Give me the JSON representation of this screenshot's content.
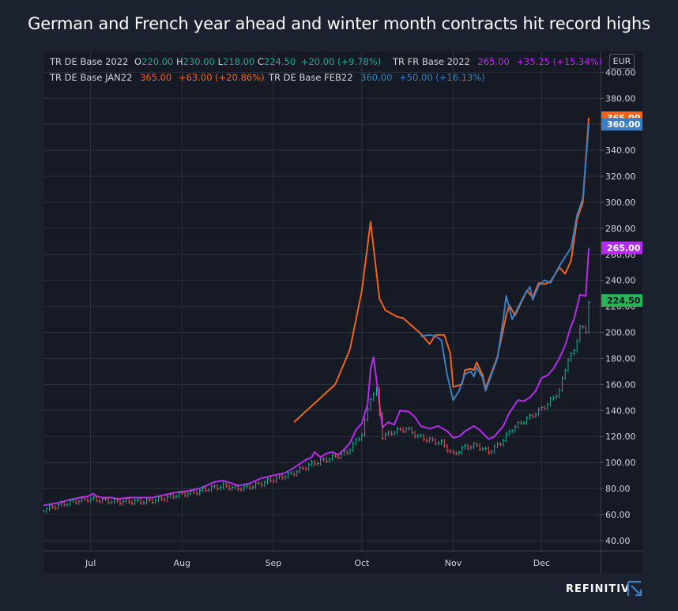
{
  "title": "German and French year ahead and winter month contracts hit record highs",
  "brand": "REFINITIV",
  "currency": "EUR",
  "legend": {
    "de2022": {
      "name": "TR DE Base 2022",
      "o_label": "O",
      "o": "220.00",
      "h_label": "H",
      "h": "230.00",
      "l_label": "L",
      "l": "218.00",
      "c_label": "C",
      "c": "224.50",
      "change": "+20.00 (+9.78%)"
    },
    "fr2022": {
      "name": "TR FR Base 2022",
      "value": "265.00",
      "change": "+35.25 (+15.34%)"
    },
    "jan22": {
      "name": "TR DE Base JAN22",
      "value": "365.00",
      "change": "+63.00 (+20.86%)"
    },
    "feb22": {
      "name": "TR DE Base FEB22",
      "value": "360.00",
      "change": "+50.00 (+16.13%)"
    }
  },
  "colors": {
    "background": "#1c2130",
    "chart_bg": "#161a25",
    "grid": "#2c313e",
    "axis_text": "#d1d4dc",
    "jan22": "#f0641e",
    "feb22": "#3d7fc1",
    "fr2022": "#b42cf0",
    "up": "#26a69a",
    "down": "#ef5350",
    "de2022_label": "#2ab45a"
  },
  "chart_data": {
    "type": "line",
    "title": "German and French year ahead and winter month contracts hit record highs",
    "x_range": [
      "2021-06-15",
      "2021-12-21"
    ],
    "x_ticks": [
      {
        "date": "2021-07-01",
        "label": "Jul"
      },
      {
        "date": "2021-08-01",
        "label": "Aug"
      },
      {
        "date": "2021-09-01",
        "label": "Sep"
      },
      {
        "date": "2021-10-01",
        "label": "Oct"
      },
      {
        "date": "2021-11-01",
        "label": "Nov"
      },
      {
        "date": "2021-12-01",
        "label": "Dec"
      }
    ],
    "ylim": [
      32,
      416
    ],
    "y_ticks": [
      "40.00",
      "60.00",
      "80.00",
      "100.00",
      "120.00",
      "140.00",
      "160.00",
      "180.00",
      "200.00",
      "220.00",
      "240.00",
      "260.00",
      "280.00",
      "300.00",
      "320.00",
      "340.00",
      "360.00",
      "380.00",
      "400.00"
    ],
    "grid": true,
    "last_value_labels": [
      {
        "series": "TR DE Base JAN22",
        "text": "365.00",
        "value": 365,
        "color": "#f0641e"
      },
      {
        "series": "TR DE Base FEB22",
        "text": "360.00",
        "value": 360,
        "color": "#3d7fc1"
      },
      {
        "series": "TR FR Base 2022",
        "text": "265.00",
        "value": 265,
        "color": "#b42cf0"
      },
      {
        "series": "TR DE Base 2022",
        "text": "224.50",
        "value": 224.5,
        "color": "#2ab45a"
      }
    ],
    "series": [
      {
        "name": "TR DE Base JAN22",
        "type": "line",
        "color": "#f0641e",
        "points": [
          [
            "2021-09-08",
            131
          ],
          [
            "2021-09-22",
            160
          ],
          [
            "2021-09-27",
            187
          ],
          [
            "2021-10-01",
            232
          ],
          [
            "2021-10-04",
            285
          ],
          [
            "2021-10-07",
            226
          ],
          [
            "2021-10-09",
            217
          ],
          [
            "2021-10-13",
            212
          ],
          [
            "2021-10-15",
            211
          ],
          [
            "2021-10-21",
            199
          ],
          [
            "2021-10-24",
            191
          ],
          [
            "2021-10-26",
            198
          ],
          [
            "2021-10-29",
            198
          ],
          [
            "2021-10-31",
            184
          ],
          [
            "2021-11-01",
            158
          ],
          [
            "2021-11-04",
            160
          ],
          [
            "2021-11-05",
            171
          ],
          [
            "2021-11-07",
            172
          ],
          [
            "2021-11-08",
            171
          ],
          [
            "2021-11-09",
            177
          ],
          [
            "2021-11-11",
            167
          ],
          [
            "2021-11-12",
            157
          ],
          [
            "2021-11-16",
            181
          ],
          [
            "2021-11-19",
            213
          ],
          [
            "2021-11-20",
            221
          ],
          [
            "2021-11-22",
            213
          ],
          [
            "2021-11-26",
            232
          ],
          [
            "2021-11-28",
            227
          ],
          [
            "2021-11-30",
            238
          ],
          [
            "2021-12-02",
            237
          ],
          [
            "2021-12-04",
            239
          ],
          [
            "2021-12-07",
            250
          ],
          [
            "2021-12-09",
            245
          ],
          [
            "2021-12-11",
            255
          ],
          [
            "2021-12-13",
            287
          ],
          [
            "2021-12-15",
            300
          ],
          [
            "2021-12-17",
            365
          ]
        ]
      },
      {
        "name": "TR DE Base FEB22",
        "type": "line",
        "color": "#3d7fc1",
        "points": [
          [
            "2021-10-21",
            197
          ],
          [
            "2021-10-24",
            198
          ],
          [
            "2021-10-26",
            197
          ],
          [
            "2021-10-28",
            194
          ],
          [
            "2021-10-30",
            167
          ],
          [
            "2021-11-01",
            148
          ],
          [
            "2021-11-03",
            155
          ],
          [
            "2021-11-05",
            168
          ],
          [
            "2021-11-07",
            170
          ],
          [
            "2021-11-08",
            166
          ],
          [
            "2021-11-09",
            173
          ],
          [
            "2021-11-11",
            165
          ],
          [
            "2021-11-12",
            155
          ],
          [
            "2021-11-16",
            180
          ],
          [
            "2021-11-18",
            210
          ],
          [
            "2021-11-19",
            228
          ],
          [
            "2021-11-21",
            210
          ],
          [
            "2021-11-25",
            228
          ],
          [
            "2021-11-27",
            235
          ],
          [
            "2021-11-28",
            225
          ],
          [
            "2021-11-30",
            236
          ],
          [
            "2021-12-02",
            240
          ],
          [
            "2021-12-04",
            238
          ],
          [
            "2021-12-07",
            251
          ],
          [
            "2021-12-09",
            258
          ],
          [
            "2021-12-11",
            265
          ],
          [
            "2021-12-13",
            290
          ],
          [
            "2021-12-15",
            303
          ],
          [
            "2021-12-17",
            360
          ]
        ]
      },
      {
        "name": "TR FR Base 2022",
        "type": "line",
        "color": "#b42cf0",
        "points": [
          [
            "2021-06-15",
            67
          ],
          [
            "2021-06-20",
            69
          ],
          [
            "2021-06-25",
            72
          ],
          [
            "2021-06-30",
            74
          ],
          [
            "2021-07-02",
            76
          ],
          [
            "2021-07-03",
            74
          ],
          [
            "2021-07-05",
            73
          ],
          [
            "2021-07-08",
            73
          ],
          [
            "2021-07-10",
            72
          ],
          [
            "2021-07-14",
            73
          ],
          [
            "2021-07-18",
            73
          ],
          [
            "2021-07-22",
            73
          ],
          [
            "2021-07-26",
            75
          ],
          [
            "2021-07-30",
            77
          ],
          [
            "2021-08-03",
            78
          ],
          [
            "2021-08-07",
            80
          ],
          [
            "2021-08-10",
            83
          ],
          [
            "2021-08-12",
            85
          ],
          [
            "2021-08-15",
            86
          ],
          [
            "2021-08-18",
            84
          ],
          [
            "2021-08-20",
            82
          ],
          [
            "2021-08-24",
            84
          ],
          [
            "2021-08-28",
            88
          ],
          [
            "2021-09-01",
            90
          ],
          [
            "2021-09-05",
            92
          ],
          [
            "2021-09-08",
            96
          ],
          [
            "2021-09-12",
            102
          ],
          [
            "2021-09-14",
            104
          ],
          [
            "2021-09-15",
            108
          ],
          [
            "2021-09-17",
            104
          ],
          [
            "2021-09-19",
            107
          ],
          [
            "2021-09-21",
            108
          ],
          [
            "2021-09-23",
            106
          ],
          [
            "2021-09-25",
            110
          ],
          [
            "2021-09-27",
            115
          ],
          [
            "2021-09-29",
            125
          ],
          [
            "2021-10-01",
            130
          ],
          [
            "2021-10-03",
            145
          ],
          [
            "2021-10-04",
            172
          ],
          [
            "2021-10-05",
            181
          ],
          [
            "2021-10-06",
            163
          ],
          [
            "2021-10-08",
            127
          ],
          [
            "2021-10-10",
            131
          ],
          [
            "2021-10-12",
            129
          ],
          [
            "2021-10-14",
            140
          ],
          [
            "2021-10-17",
            139
          ],
          [
            "2021-10-19",
            135
          ],
          [
            "2021-10-21",
            128
          ],
          [
            "2021-10-24",
            126
          ],
          [
            "2021-10-27",
            128
          ],
          [
            "2021-10-30",
            124
          ],
          [
            "2021-11-01",
            119
          ],
          [
            "2021-11-03",
            120
          ],
          [
            "2021-11-05",
            124
          ],
          [
            "2021-11-08",
            128
          ],
          [
            "2021-11-10",
            125
          ],
          [
            "2021-11-13",
            118
          ],
          [
            "2021-11-15",
            120
          ],
          [
            "2021-11-18",
            128
          ],
          [
            "2021-11-20",
            138
          ],
          [
            "2021-11-23",
            148
          ],
          [
            "2021-11-25",
            147
          ],
          [
            "2021-11-27",
            150
          ],
          [
            "2021-11-29",
            155
          ],
          [
            "2021-12-01",
            165
          ],
          [
            "2021-12-03",
            167
          ],
          [
            "2021-12-05",
            172
          ],
          [
            "2021-12-07",
            180
          ],
          [
            "2021-12-09",
            190
          ],
          [
            "2021-12-11",
            205
          ],
          [
            "2021-12-12",
            210
          ],
          [
            "2021-12-14",
            229
          ],
          [
            "2021-12-16",
            228
          ],
          [
            "2021-12-17",
            265
          ]
        ]
      },
      {
        "name": "TR DE Base 2022",
        "type": "ohlc",
        "up_color": "#26a69a",
        "down_color": "#ef5350",
        "points": [
          [
            "2021-06-15",
            64
          ],
          [
            "2021-06-20",
            67
          ],
          [
            "2021-06-25",
            70
          ],
          [
            "2021-06-30",
            72
          ],
          [
            "2021-07-05",
            71
          ],
          [
            "2021-07-10",
            70
          ],
          [
            "2021-07-15",
            70
          ],
          [
            "2021-07-20",
            70
          ],
          [
            "2021-07-25",
            72
          ],
          [
            "2021-07-30",
            75
          ],
          [
            "2021-08-05",
            77
          ],
          [
            "2021-08-10",
            80
          ],
          [
            "2021-08-15",
            82
          ],
          [
            "2021-08-20",
            80
          ],
          [
            "2021-08-25",
            82
          ],
          [
            "2021-09-01",
            87
          ],
          [
            "2021-09-08",
            92
          ],
          [
            "2021-09-14",
            99
          ],
          [
            "2021-09-20",
            103
          ],
          [
            "2021-09-26",
            108
          ],
          [
            "2021-10-01",
            122
          ],
          [
            "2021-10-04",
            150
          ],
          [
            "2021-10-06",
            155
          ],
          [
            "2021-10-08",
            120
          ],
          [
            "2021-10-12",
            124
          ],
          [
            "2021-10-16",
            126
          ],
          [
            "2021-10-20",
            120
          ],
          [
            "2021-10-24",
            117
          ],
          [
            "2021-10-28",
            115
          ],
          [
            "2021-11-01",
            106
          ],
          [
            "2021-11-05",
            112
          ],
          [
            "2021-11-09",
            113
          ],
          [
            "2021-11-13",
            108
          ],
          [
            "2021-11-17",
            115
          ],
          [
            "2021-11-21",
            126
          ],
          [
            "2021-11-25",
            132
          ],
          [
            "2021-11-29",
            138
          ],
          [
            "2021-12-03",
            145
          ],
          [
            "2021-12-07",
            155
          ],
          [
            "2021-12-10",
            180
          ],
          [
            "2021-12-12",
            185
          ],
          [
            "2021-12-14",
            205
          ],
          [
            "2021-12-16",
            200
          ],
          [
            "2021-12-17",
            224.5
          ]
        ]
      }
    ]
  }
}
